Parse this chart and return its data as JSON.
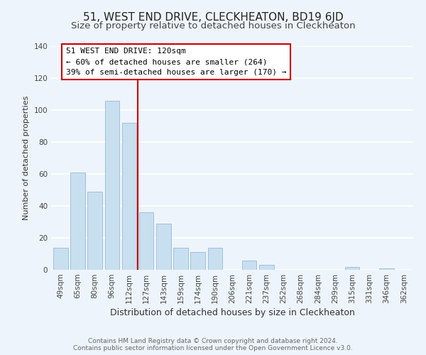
{
  "title": "51, WEST END DRIVE, CLECKHEATON, BD19 6JD",
  "subtitle": "Size of property relative to detached houses in Cleckheaton",
  "xlabel": "Distribution of detached houses by size in Cleckheaton",
  "ylabel": "Number of detached properties",
  "bar_labels": [
    "49sqm",
    "65sqm",
    "80sqm",
    "96sqm",
    "112sqm",
    "127sqm",
    "143sqm",
    "159sqm",
    "174sqm",
    "190sqm",
    "206sqm",
    "221sqm",
    "237sqm",
    "252sqm",
    "268sqm",
    "284sqm",
    "299sqm",
    "315sqm",
    "331sqm",
    "346sqm",
    "362sqm"
  ],
  "bar_values": [
    14,
    61,
    49,
    106,
    92,
    36,
    29,
    14,
    11,
    14,
    0,
    6,
    3,
    0,
    0,
    0,
    0,
    2,
    0,
    1,
    0
  ],
  "bar_color": "#c8dff0",
  "bar_edge_color": "#a0c0dc",
  "vline_color": "#cc0000",
  "annotation_title": "51 WEST END DRIVE: 120sqm",
  "annotation_line1": "← 60% of detached houses are smaller (264)",
  "annotation_line2": "39% of semi-detached houses are larger (170) →",
  "annotation_box_color": "#ffffff",
  "annotation_box_edge": "#cc0000",
  "ylim": [
    0,
    140
  ],
  "yticks": [
    0,
    20,
    40,
    60,
    80,
    100,
    120,
    140
  ],
  "footer1": "Contains HM Land Registry data © Crown copyright and database right 2024.",
  "footer2": "Contains public sector information licensed under the Open Government Licence v3.0.",
  "background_color": "#eef4fb",
  "grid_color": "#ffffff",
  "title_fontsize": 11,
  "subtitle_fontsize": 9.5,
  "xlabel_fontsize": 9,
  "ylabel_fontsize": 8,
  "tick_fontsize": 7.5,
  "footer_fontsize": 6.5,
  "annotation_fontsize": 8
}
